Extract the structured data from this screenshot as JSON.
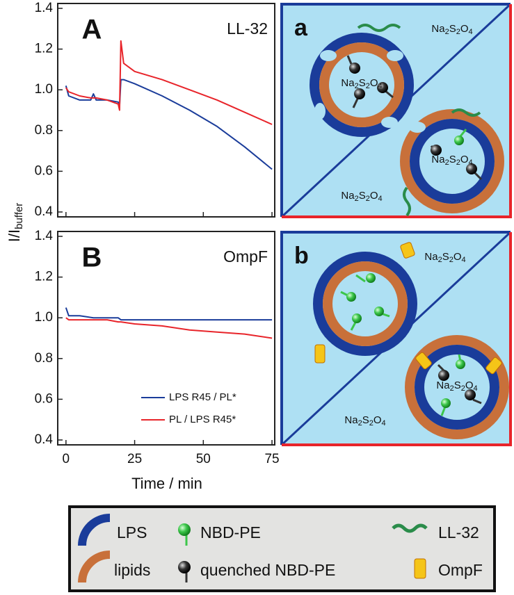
{
  "chart_data": [
    {
      "type": "line",
      "label": "A",
      "title": "LL-32",
      "x": [
        0,
        1,
        5,
        9,
        10,
        11,
        15,
        19,
        19.5,
        20,
        21,
        25,
        35,
        45,
        55,
        65,
        75
      ],
      "series": [
        {
          "color": "#1a3c9a",
          "values": [
            1.02,
            0.97,
            0.95,
            0.95,
            0.98,
            0.95,
            0.95,
            0.94,
            0.92,
            1.05,
            1.05,
            1.03,
            0.97,
            0.9,
            0.82,
            0.72,
            0.61
          ]
        },
        {
          "color": "#e8242a",
          "values": [
            1.01,
            0.99,
            0.97,
            0.96,
            0.96,
            0.96,
            0.95,
            0.93,
            0.9,
            1.24,
            1.13,
            1.09,
            1.05,
            1.0,
            0.95,
            0.89,
            0.83
          ]
        }
      ],
      "xlim": [
        -3,
        76
      ],
      "xticks": [
        0,
        25,
        50,
        75
      ],
      "ylim": [
        0.376,
        1.424
      ],
      "yticks": [
        0.4,
        0.6,
        0.8,
        {
          "value": 1,
          "label": "1.0"
        },
        1.2,
        1.4
      ],
      "grid": false
    },
    {
      "type": "line",
      "label": "B",
      "title": "OmpF",
      "x_label": "Time / min",
      "legend": "bottom-right",
      "x": [
        0,
        1,
        5,
        10,
        15,
        19,
        20,
        25,
        35,
        45,
        55,
        65,
        75
      ],
      "series": [
        {
          "name": "LPS R45 / PL*",
          "color": "#1a3c9a",
          "values": [
            1.05,
            1.01,
            1.01,
            1.0,
            1.0,
            1.0,
            0.99,
            0.99,
            0.99,
            0.99,
            0.99,
            0.99,
            0.99
          ]
        },
        {
          "name": "PL / LPS R45*",
          "color": "#e8242a",
          "values": [
            1.0,
            0.99,
            0.99,
            0.99,
            0.99,
            0.98,
            0.98,
            0.97,
            0.96,
            0.94,
            0.93,
            0.92,
            0.9
          ]
        }
      ],
      "xlim": [
        -3,
        76
      ],
      "xticks": [
        0,
        25,
        50,
        75
      ],
      "ylim": [
        0.376,
        1.424
      ],
      "yticks": [
        0.4,
        0.6,
        0.8,
        {
          "value": 1,
          "label": "1.0"
        },
        1.2,
        1.4
      ],
      "grid": false
    }
  ],
  "y_label": {
    "main": "I/I",
    "sub": "buffer"
  },
  "panels": [
    {
      "label": "a",
      "texts": [
        "Na2S2O4",
        "Na2S2O4",
        "Na2S2O4",
        "Na2S2O4"
      ]
    },
    {
      "label": "b",
      "texts": [
        "Na2S2O4",
        "Na2S2O4",
        "Na2S2O4"
      ]
    }
  ],
  "legend": {
    "items": [
      "LPS",
      "lipids",
      "NBD-PE",
      "quenched NBD-PE",
      "LL-32",
      "OmpF"
    ]
  }
}
